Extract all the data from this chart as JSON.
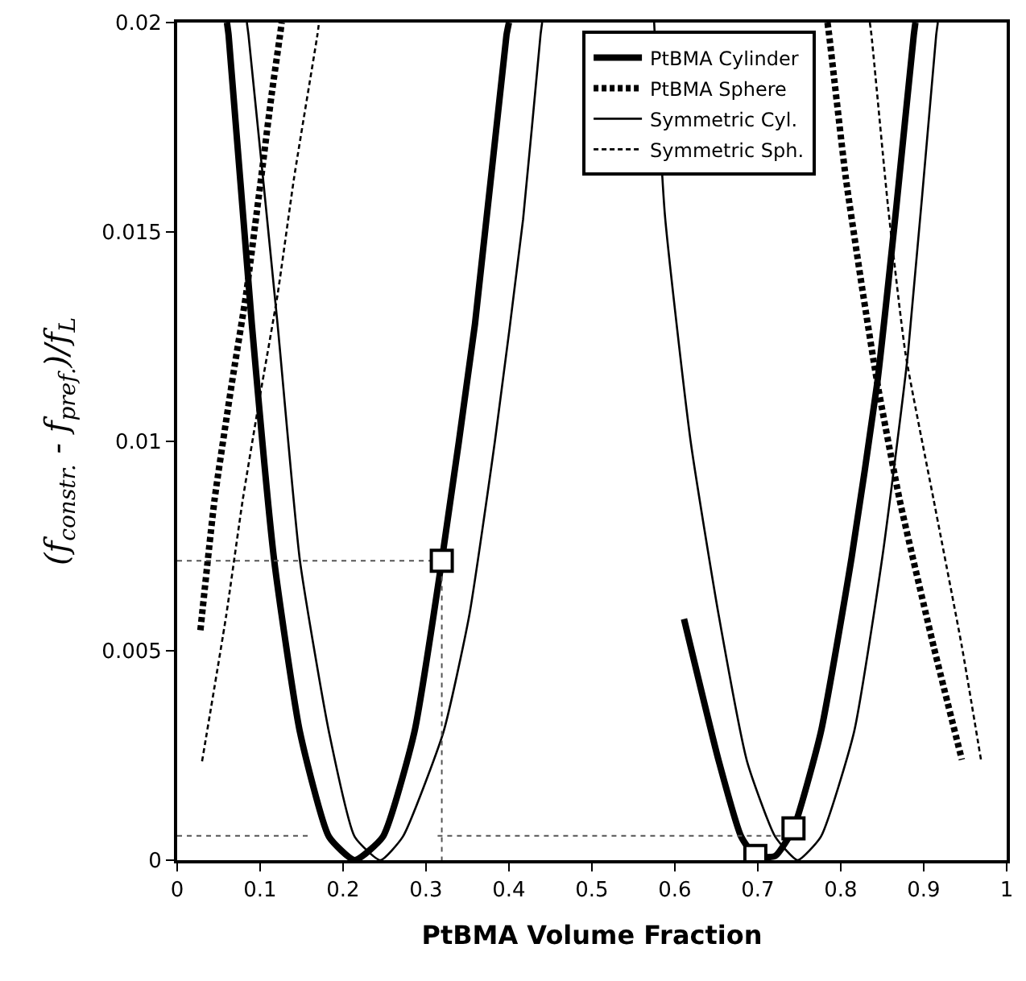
{
  "chart_data": {
    "type": "line",
    "xlabel": "PtBMA Volume Fraction",
    "ylabel": "(f$_{constr.}$ - f$_{pref.}$)/f$_{L}$",
    "xlim": [
      0,
      1
    ],
    "ylim": [
      0,
      0.02
    ],
    "xticks": [
      0,
      0.1,
      0.2,
      0.3,
      0.4,
      0.5,
      0.6,
      0.7,
      0.8,
      0.9,
      1
    ],
    "yticks": [
      0,
      0.005,
      0.01,
      0.015,
      0.02
    ],
    "legend": "top right",
    "marker": "none",
    "series": [
      {
        "name": "PtBMA Cylinder",
        "color": "#000000",
        "line_style": "solid",
        "x": [
          0.06,
          0.062,
          0.09,
          0.117,
          0.148,
          0.183,
          0.214,
          0.248,
          0.286,
          0.319,
          0.359,
          0.397,
          0.4,
          null,
          0.611,
          0.653,
          0.68,
          0.697,
          0.721,
          0.743,
          0.776,
          0.813,
          0.844,
          0.867,
          0.888,
          0.89
        ],
        "values": [
          0.02,
          0.0197,
          0.0128,
          0.00715,
          0.00306,
          0.00056,
          0,
          0.00056,
          0.00306,
          0.00715,
          0.0128,
          0.0197,
          0.02,
          null,
          0.00576,
          0.00236,
          0.00056,
          0.0001,
          0.0001,
          0.00076,
          0.00306,
          0.00722,
          0.0114,
          0.0156,
          0.0197,
          0.02
        ]
      },
      {
        "name": "PtBMA Sphere",
        "color": "#000000",
        "line_style": "dashed",
        "x": [
          0.028,
          0.045,
          0.066,
          0.083,
          0.1,
          0.114,
          0.124,
          0.126,
          null,
          0.784,
          0.786,
          0.806,
          0.827,
          0.844,
          0.871,
          0.912,
          0.946
        ],
        "values": [
          0.00549,
          0.0086,
          0.0114,
          0.0135,
          0.0161,
          0.0183,
          0.0197,
          0.02,
          null,
          0.02,
          0.0197,
          0.0163,
          0.0135,
          0.0114,
          0.0086,
          0.0051,
          0.0024
        ]
      },
      {
        "name": "Symmetric Cyl.",
        "color": "#000000",
        "line_style": "solid",
        "x": [
          0.084,
          0.086,
          0.121,
          0.148,
          0.183,
          0.214,
          0.245,
          0.272,
          0.321,
          0.352,
          0.383,
          0.417,
          0.438,
          0.44,
          null,
          0.575,
          0.588,
          0.619,
          0.653,
          0.687,
          0.721,
          0.748,
          0.776,
          0.816,
          0.85,
          0.881,
          0.915,
          0.917
        ],
        "values": [
          0.02,
          0.0197,
          0.0128,
          0.00715,
          0.00306,
          0.00056,
          0,
          0.00056,
          0.00306,
          0.00583,
          0.01,
          0.0153,
          0.0197,
          0.02,
          null,
          0.02,
          0.0154,
          0.01,
          0.00583,
          0.00236,
          0.00056,
          0,
          0.00056,
          0.00306,
          0.00722,
          0.0121,
          0.0197,
          0.02
        ]
      },
      {
        "name": "Symmetric Sph.",
        "color": "#000000",
        "line_style": "dashed",
        "x": [
          0.03,
          0.059,
          0.079,
          0.1,
          0.121,
          0.141,
          0.169,
          0.171,
          null,
          0.835,
          0.837,
          0.857,
          0.878,
          0.912,
          0.946,
          0.969
        ],
        "values": [
          0.00236,
          0.00583,
          0.0086,
          0.0111,
          0.0135,
          0.0163,
          0.0197,
          0.02,
          null,
          0.02,
          0.0197,
          0.0156,
          0.0121,
          0.0086,
          0.0051,
          0.0024
        ]
      },
      {
        "color": "#555555",
        "line_style": "dotted",
        "x": [
          0,
          0.319,
          0.319,
          null,
          0,
          0.163,
          null,
          0.314,
          0.735
        ],
        "values": [
          0.00715,
          0.00715,
          0,
          null,
          0.00058,
          0.00058,
          null,
          0.00058,
          0.00058
        ]
      },
      {
        "type": "scatter",
        "marker": "square",
        "color": "#000000",
        "x": [
          0.319,
          0.697,
          0.743
        ],
        "values": [
          0.00715,
          0.0001,
          0.00076
        ]
      }
    ]
  }
}
